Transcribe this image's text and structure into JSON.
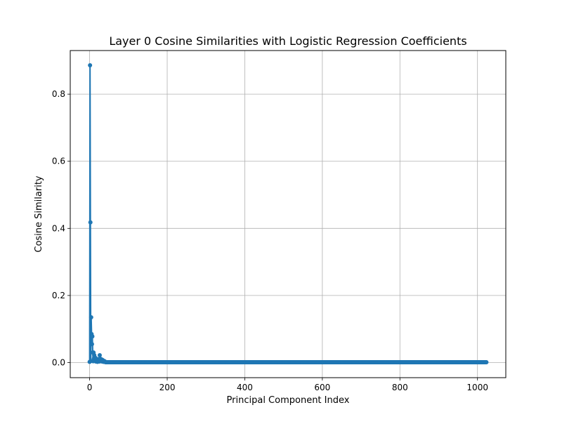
{
  "chart_data": {
    "type": "line",
    "title": "Layer 0 Cosine Similarities with Logistic Regression Coefficients",
    "xlabel": "Principal Component Index",
    "ylabel": "Cosine Similarity",
    "xlim": [
      -50,
      1073
    ],
    "ylim": [
      -0.045,
      0.93
    ],
    "xticks": [
      0,
      200,
      400,
      600,
      800,
      1000
    ],
    "xtick_labels": [
      "0",
      "200",
      "400",
      "600",
      "800",
      "1000"
    ],
    "yticks": [
      0.0,
      0.2,
      0.4,
      0.6,
      0.8
    ],
    "ytick_labels": [
      "0.0",
      "0.2",
      "0.4",
      "0.6",
      "0.8"
    ],
    "grid": true,
    "marker": "circle",
    "n_points": 1024,
    "series": [
      {
        "color": "#1f77b4",
        "head_x": [
          0,
          1,
          2,
          3,
          4,
          5,
          6,
          7,
          8,
          9,
          10,
          11,
          12,
          13,
          14,
          15,
          16,
          17,
          18,
          19,
          20,
          21,
          22,
          23,
          24,
          25,
          26,
          27,
          28,
          29,
          30,
          31,
          32,
          33,
          34,
          35,
          36,
          37,
          38,
          39,
          40
        ],
        "head_y": [
          0.002,
          0.886,
          0.418,
          0.005,
          0.135,
          0.085,
          0.055,
          0.078,
          0.03,
          0.004,
          0.03,
          0.012,
          0.022,
          0.01,
          0.006,
          0.014,
          0.003,
          0.011,
          0.006,
          0.008,
          0.002,
          0.004,
          0.01,
          0.005,
          0.009,
          0.003,
          0.022,
          0.012,
          0.006,
          0.004,
          0.01,
          0.005,
          0.003,
          0.008,
          0.004,
          0.006,
          0.002,
          0.005,
          0.003,
          0.004,
          0.002
        ],
        "tail_level": 0.001
      }
    ]
  }
}
